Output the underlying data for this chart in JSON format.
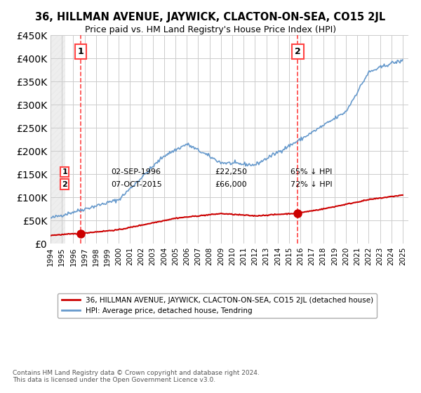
{
  "title": "36, HILLMAN AVENUE, JAYWICK, CLACTON-ON-SEA, CO15 2JL",
  "subtitle": "Price paid vs. HM Land Registry's House Price Index (HPI)",
  "ylabel_values": [
    "£0",
    "£50K",
    "£100K",
    "£150K",
    "£200K",
    "£250K",
    "£300K",
    "£350K",
    "£400K",
    "£450K"
  ],
  "ylim": [
    0,
    450000
  ],
  "yticks": [
    0,
    50000,
    100000,
    150000,
    200000,
    250000,
    300000,
    350000,
    400000,
    450000
  ],
  "sale1_date": 1996.67,
  "sale1_price": 22250,
  "sale1_label": "1",
  "sale2_date": 2015.77,
  "sale2_price": 66000,
  "sale2_label": "2",
  "legend_red": "36, HILLMAN AVENUE, JAYWICK, CLACTON-ON-SEA, CO15 2JL (detached house)",
  "legend_blue": "HPI: Average price, detached house, Tendring",
  "annotation1": "1    02-SEP-1996         £22,250         65% ↓ HPI",
  "annotation2": "2    07-OCT-2015         £66,000         72% ↓ HPI",
  "footnote": "Contains HM Land Registry data © Crown copyright and database right 2024.\nThis data is licensed under the Open Government Licence v3.0.",
  "red_color": "#cc0000",
  "blue_color": "#6699cc",
  "dashed_color": "#ff4444",
  "hatch_color": "#dddddd",
  "background_color": "#ffffff",
  "xmin": 1994,
  "xmax": 2025.5
}
